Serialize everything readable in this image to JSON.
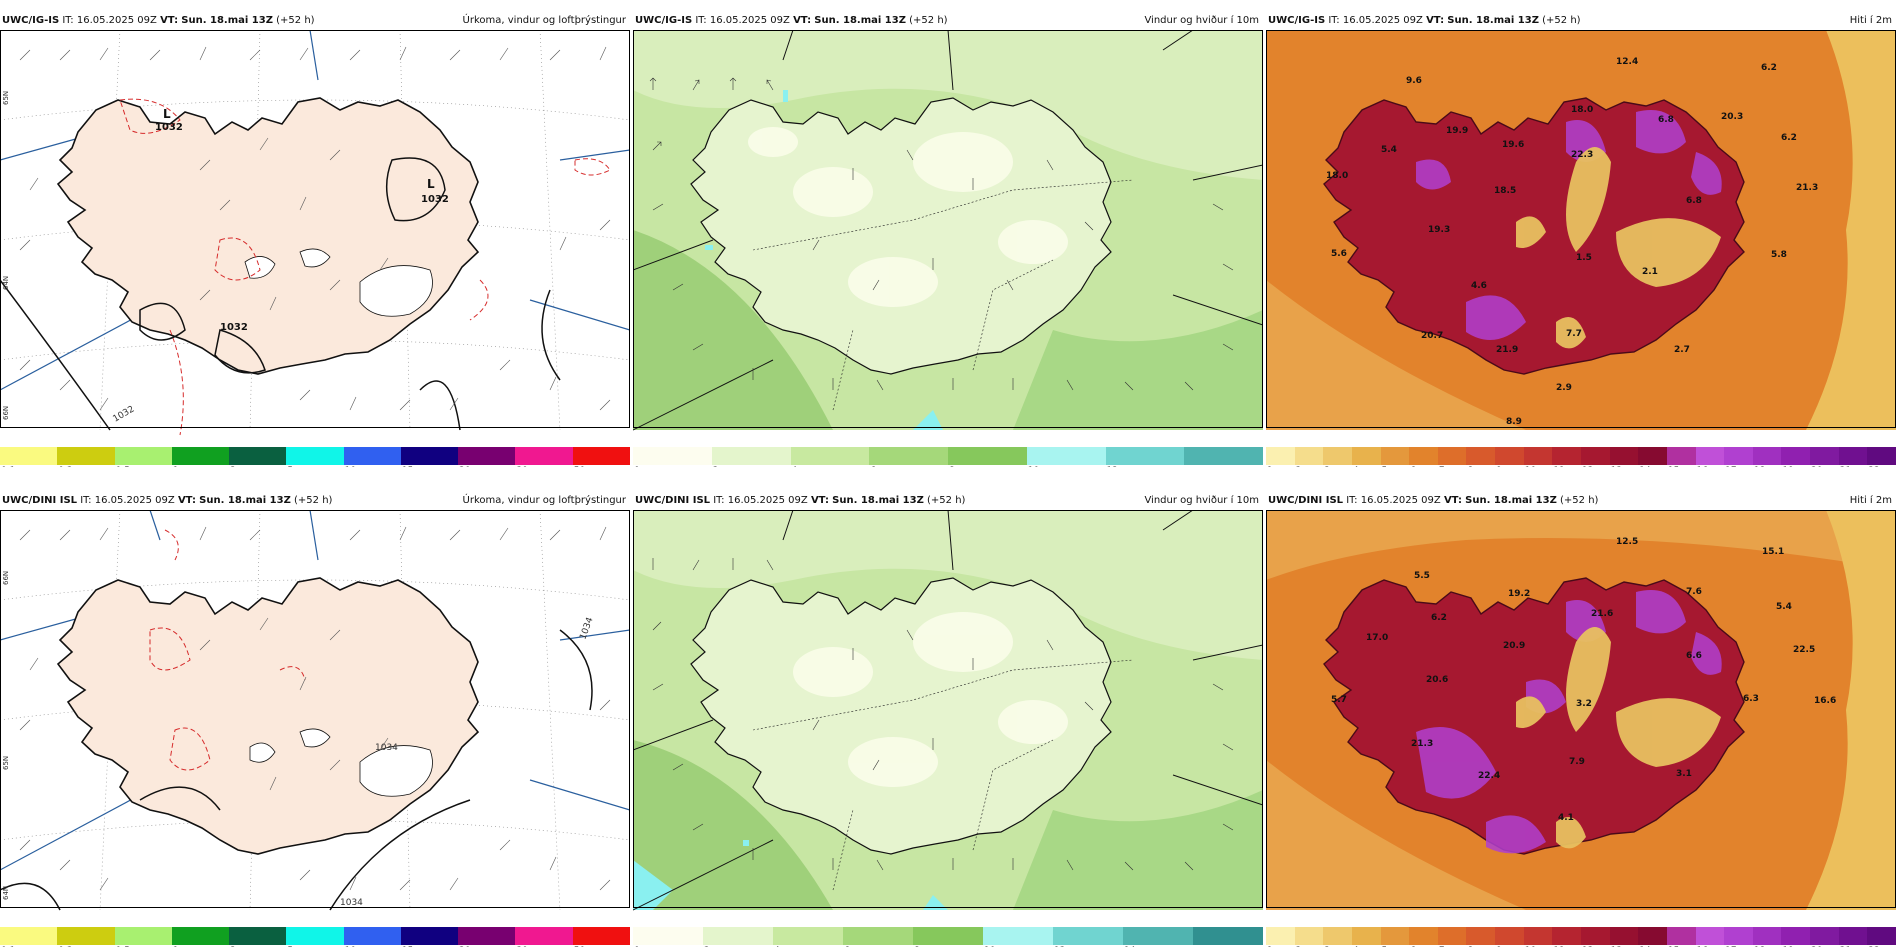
{
  "colors": {
    "land": "#fbe9dc",
    "sea": "#ffffff",
    "coast": "#111111",
    "precip": "#d62c2c",
    "warm": "#e2832c",
    "green": "#c7e6a3"
  },
  "precip_legend": {
    "colors": [
      "#fafa80",
      "#cdcd10",
      "#a8f070",
      "#10a020",
      "#0a6040",
      "#10f5e8",
      "#3060f0",
      "#100080",
      "#780070",
      "#f01890",
      "#f01010"
    ],
    "ticks": [
      "0.1",
      "0.3",
      "0.5",
      "1",
      "3",
      "5",
      "10",
      "15",
      "20",
      "30",
      "50"
    ]
  },
  "wind_legend_top": {
    "colors": [
      "#fdfdef",
      "#e4f5cc",
      "#c8e9a0",
      "#a5d87a",
      "#86c85c",
      "#a8f4f0",
      "#70d4d0",
      "#50b4b0"
    ],
    "ticks": [
      "0",
      "2",
      "4",
      "6",
      "8",
      "10",
      "12"
    ]
  },
  "wind_legend_bottom": {
    "colors": [
      "#fdfdef",
      "#e4f5cc",
      "#c8e9a0",
      "#a5d87a",
      "#86c85c",
      "#a8f4f0",
      "#70d4d0",
      "#50b4b0",
      "#309090"
    ],
    "ticks": [
      "0",
      "2",
      "4",
      "6",
      "8",
      "10",
      "12",
      "14"
    ]
  },
  "temp_legend": {
    "colors": [
      "#fbf0b0",
      "#f5dd8c",
      "#eec86c",
      "#e8b24c",
      "#e4983c",
      "#e2832c",
      "#de6e2a",
      "#d85a2c",
      "#d0482e",
      "#c43630",
      "#b52430",
      "#a61830",
      "#961030",
      "#860a30",
      "#b030a0",
      "#c050d8",
      "#b040d0",
      "#a030c0",
      "#9020b0",
      "#801aa0",
      "#701090",
      "#600a80"
    ],
    "ticks": [
      "1",
      "2",
      "3",
      "4",
      "5",
      "6",
      "7",
      "8",
      "9",
      "10",
      "11",
      "12",
      "13",
      "14",
      "15",
      "16",
      "17",
      "18",
      "19",
      "20",
      "21",
      "22",
      "23"
    ]
  },
  "panels": {
    "tl": {
      "model": "UWC/IG-IS",
      "it_label": "IT:",
      "it": "16.05.2025 09Z",
      "vt_label": "VT:",
      "vt": "Sun. 18.mai 13Z",
      "lead": "(+52 h)",
      "title": "Úrkoma, vindur og loftþrýstingur",
      "labels": [
        "L",
        "1032",
        "1032",
        "L",
        "1032",
        "1032"
      ],
      "lat_labels": [
        "65N",
        "64N",
        "66N"
      ]
    },
    "tm": {
      "model": "UWC/IG-IS",
      "it_label": "IT:",
      "it": "16.05.2025 09Z",
      "vt_label": "VT:",
      "vt": "Sun. 18.mai 13Z",
      "lead": "(+52 h)",
      "title": "Vindur og hviður í 10m"
    },
    "tr": {
      "model": "UWC/IG-IS",
      "it_label": "IT:",
      "it": "16.05.2025 09Z",
      "vt_label": "VT:",
      "vt": "Sun. 18.mai 13Z",
      "lead": "(+52 h)",
      "title": "Hiti í 2m",
      "values": [
        "12.4",
        "6.2",
        "9.6",
        "19.9",
        "18.0",
        "20.3",
        "5.4",
        "19.6",
        "22.3",
        "6.8",
        "6.2",
        "18.0",
        "18.5",
        "6.8",
        "21.3",
        "19.3",
        "5.6",
        "1.5",
        "2.1",
        "5.8",
        "4.6",
        "20.7",
        "7.7",
        "21.9",
        "2.7",
        "2.9",
        "8.9"
      ]
    },
    "bl": {
      "model": "UWC/DINI ISL",
      "it_label": "IT:",
      "it": "16.05.2025 09Z",
      "vt_label": "VT:",
      "vt": "Sun. 18.mai 13Z",
      "lead": "(+52 h)",
      "title": "Úrkoma, vindur og loftþrýstingur",
      "labels": [
        "1034",
        "1034",
        "1034"
      ],
      "lat_labels": [
        "66N",
        "65N",
        "64N"
      ]
    },
    "bm": {
      "model": "UWC/DINI ISL",
      "it_label": "IT:",
      "it": "16.05.2025 09Z",
      "vt_label": "VT:",
      "vt": "Sun. 18.mai 13Z",
      "lead": "(+52 h)",
      "title": "Vindur og hviður í 10m"
    },
    "br": {
      "model": "UWC/DINI ISL",
      "it_label": "IT:",
      "it": "16.05.2025 09Z",
      "vt_label": "VT:",
      "vt": "Sun. 18.mai 13Z",
      "lead": "(+52 h)",
      "title": "Hiti í 2m",
      "values": [
        "12.5",
        "15.1",
        "5.5",
        "19.2",
        "7.6",
        "5.4",
        "6.2",
        "21.6",
        "17.0",
        "20.9",
        "6.6",
        "22.5",
        "5.7",
        "20.6",
        "3.2",
        "6.3",
        "16.6",
        "21.3",
        "7.9",
        "22.4",
        "3.1",
        "4.1"
      ]
    }
  }
}
